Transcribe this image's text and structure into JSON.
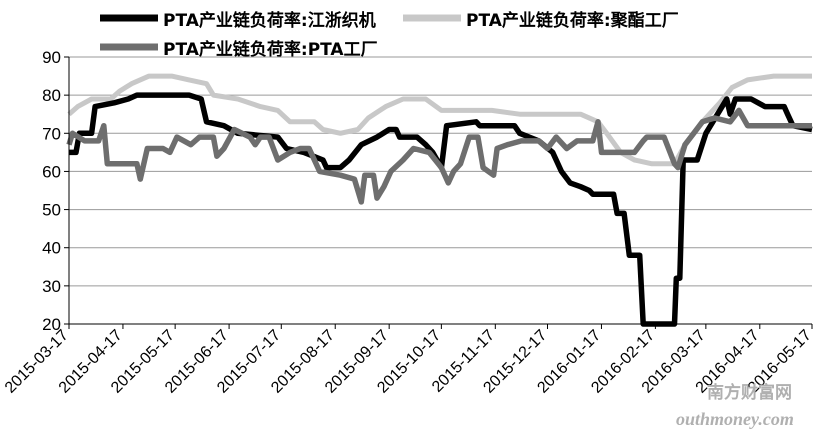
{
  "chart_data": {
    "type": "line",
    "ylim": [
      20,
      90
    ],
    "yticks": [
      20,
      30,
      40,
      50,
      60,
      70,
      80,
      90
    ],
    "xticks": [
      "2015-03-17",
      "2015-04-17",
      "2015-05-17",
      "2015-06-17",
      "2015-07-17",
      "2015-08-17",
      "2015-09-17",
      "2015-10-17",
      "2015-11-17",
      "2015-12-17",
      "2016-01-17",
      "2016-02-17",
      "2016-03-17",
      "2016-04-17",
      "2016-05-17"
    ],
    "x_range": [
      "2015-03-17",
      "2016-05-17"
    ],
    "grid": "horizontal",
    "legend_position": "top",
    "series": [
      {
        "name": "PTA产业链负荷率:江浙织机",
        "color": "#000000",
        "points": [
          [
            "2015-03-17",
            65
          ],
          [
            "2015-03-21",
            65
          ],
          [
            "2015-03-23",
            70
          ],
          [
            "2015-03-30",
            70
          ],
          [
            "2015-04-01",
            77
          ],
          [
            "2015-04-12",
            78
          ],
          [
            "2015-04-20",
            79
          ],
          [
            "2015-04-25",
            80
          ],
          [
            "2015-05-25",
            80
          ],
          [
            "2015-06-01",
            79
          ],
          [
            "2015-06-04",
            73
          ],
          [
            "2015-06-14",
            72
          ],
          [
            "2015-06-22",
            70
          ],
          [
            "2015-07-15",
            69
          ],
          [
            "2015-07-20",
            66
          ],
          [
            "2015-07-30",
            65
          ],
          [
            "2015-08-10",
            63
          ],
          [
            "2015-08-12",
            61
          ],
          [
            "2015-08-20",
            61
          ],
          [
            "2015-08-25",
            63
          ],
          [
            "2015-09-01",
            67
          ],
          [
            "2015-09-10",
            69
          ],
          [
            "2015-09-17",
            71
          ],
          [
            "2015-09-21",
            71
          ],
          [
            "2015-09-23",
            69
          ],
          [
            "2015-10-03",
            69
          ],
          [
            "2015-10-08",
            67
          ],
          [
            "2015-10-12",
            65
          ],
          [
            "2015-10-17",
            61
          ],
          [
            "2015-10-20",
            72
          ],
          [
            "2015-11-06",
            73
          ],
          [
            "2015-11-08",
            72
          ],
          [
            "2015-11-28",
            72
          ],
          [
            "2015-12-01",
            70
          ],
          [
            "2015-12-12",
            68
          ],
          [
            "2015-12-20",
            65
          ],
          [
            "2015-12-25",
            60
          ],
          [
            "2015-12-30",
            57
          ],
          [
            "2016-01-05",
            56
          ],
          [
            "2016-01-10",
            55
          ],
          [
            "2016-01-12",
            54
          ],
          [
            "2016-01-24",
            54
          ],
          [
            "2016-01-26",
            49
          ],
          [
            "2016-01-30",
            49
          ],
          [
            "2016-02-02",
            38
          ],
          [
            "2016-02-08",
            38
          ],
          [
            "2016-02-10",
            20
          ],
          [
            "2016-02-28",
            20
          ],
          [
            "2016-02-29",
            32
          ],
          [
            "2016-03-02",
            32
          ],
          [
            "2016-03-04",
            63
          ],
          [
            "2016-03-12",
            63
          ],
          [
            "2016-03-17",
            70
          ],
          [
            "2016-03-25",
            76
          ],
          [
            "2016-03-29",
            79
          ],
          [
            "2016-03-31",
            75
          ],
          [
            "2016-04-03",
            79
          ],
          [
            "2016-04-12",
            79
          ],
          [
            "2016-04-16",
            78
          ],
          [
            "2016-04-20",
            77
          ],
          [
            "2016-05-01",
            77
          ],
          [
            "2016-05-03",
            75
          ],
          [
            "2016-05-06",
            72
          ],
          [
            "2016-05-17",
            71
          ]
        ]
      },
      {
        "name": "PTA产业链负荷率:聚酯工厂",
        "color": "#c8c8c8",
        "points": [
          [
            "2015-03-17",
            75
          ],
          [
            "2015-03-22",
            77
          ],
          [
            "2015-03-30",
            79
          ],
          [
            "2015-04-10",
            79
          ],
          [
            "2015-04-15",
            81
          ],
          [
            "2015-04-22",
            83
          ],
          [
            "2015-05-02",
            85
          ],
          [
            "2015-05-15",
            85
          ],
          [
            "2015-05-25",
            84
          ],
          [
            "2015-06-04",
            83
          ],
          [
            "2015-06-08",
            80
          ],
          [
            "2015-06-22",
            79
          ],
          [
            "2015-07-05",
            77
          ],
          [
            "2015-07-15",
            76
          ],
          [
            "2015-07-22",
            73
          ],
          [
            "2015-08-05",
            73
          ],
          [
            "2015-08-10",
            71
          ],
          [
            "2015-08-20",
            70
          ],
          [
            "2015-08-30",
            71
          ],
          [
            "2015-09-05",
            74
          ],
          [
            "2015-09-15",
            77
          ],
          [
            "2015-09-25",
            79
          ],
          [
            "2015-10-08",
            79
          ],
          [
            "2015-10-17",
            76
          ],
          [
            "2015-11-15",
            76
          ],
          [
            "2015-12-01",
            75
          ],
          [
            "2015-12-20",
            75
          ],
          [
            "2016-01-05",
            75
          ],
          [
            "2016-01-15",
            73
          ],
          [
            "2016-01-20",
            70
          ],
          [
            "2016-01-28",
            65
          ],
          [
            "2016-02-05",
            63
          ],
          [
            "2016-02-15",
            62
          ],
          [
            "2016-02-28",
            62
          ],
          [
            "2016-03-05",
            67
          ],
          [
            "2016-03-15",
            73
          ],
          [
            "2016-03-25",
            78
          ],
          [
            "2016-04-01",
            82
          ],
          [
            "2016-04-10",
            84
          ],
          [
            "2016-04-25",
            85
          ],
          [
            "2016-05-17",
            85
          ]
        ]
      },
      {
        "name": "PTA产业链负荷率:PTA工厂",
        "color": "#6e6e6e",
        "points": [
          [
            "2015-03-17",
            67
          ],
          [
            "2015-03-19",
            70
          ],
          [
            "2015-03-26",
            68
          ],
          [
            "2015-04-03",
            68
          ],
          [
            "2015-04-06",
            72
          ],
          [
            "2015-04-08",
            62
          ],
          [
            "2015-04-25",
            62
          ],
          [
            "2015-04-27",
            58
          ],
          [
            "2015-05-01",
            66
          ],
          [
            "2015-05-10",
            66
          ],
          [
            "2015-05-14",
            65
          ],
          [
            "2015-05-18",
            69
          ],
          [
            "2015-05-26",
            67
          ],
          [
            "2015-05-31",
            69
          ],
          [
            "2015-06-08",
            69
          ],
          [
            "2015-06-10",
            64
          ],
          [
            "2015-06-14",
            66
          ],
          [
            "2015-06-20",
            71
          ],
          [
            "2015-06-29",
            69
          ],
          [
            "2015-07-02",
            67
          ],
          [
            "2015-07-05",
            69
          ],
          [
            "2015-07-10",
            69
          ],
          [
            "2015-07-15",
            63
          ],
          [
            "2015-07-22",
            65
          ],
          [
            "2015-07-28",
            66
          ],
          [
            "2015-08-02",
            66
          ],
          [
            "2015-08-08",
            60
          ],
          [
            "2015-08-20",
            59
          ],
          [
            "2015-08-28",
            58
          ],
          [
            "2015-09-01",
            52
          ],
          [
            "2015-09-03",
            59
          ],
          [
            "2015-09-08",
            59
          ],
          [
            "2015-09-10",
            53
          ],
          [
            "2015-09-14",
            56
          ],
          [
            "2015-09-18",
            60
          ],
          [
            "2015-09-25",
            63
          ],
          [
            "2015-10-01",
            66
          ],
          [
            "2015-10-10",
            65
          ],
          [
            "2015-10-17",
            61
          ],
          [
            "2015-10-21",
            57
          ],
          [
            "2015-10-24",
            60
          ],
          [
            "2015-10-28",
            62
          ],
          [
            "2015-11-02",
            69
          ],
          [
            "2015-11-07",
            69
          ],
          [
            "2015-11-10",
            61
          ],
          [
            "2015-11-16",
            59
          ],
          [
            "2015-11-18",
            66
          ],
          [
            "2015-11-24",
            67
          ],
          [
            "2015-12-02",
            68
          ],
          [
            "2015-12-12",
            68
          ],
          [
            "2015-12-17",
            66
          ],
          [
            "2015-12-22",
            69
          ],
          [
            "2015-12-28",
            66
          ],
          [
            "2016-01-03",
            68
          ],
          [
            "2016-01-12",
            68
          ],
          [
            "2016-01-15",
            73
          ],
          [
            "2016-01-17",
            65
          ],
          [
            "2016-02-05",
            65
          ],
          [
            "2016-02-10",
            68
          ],
          [
            "2016-02-12",
            69
          ],
          [
            "2016-02-22",
            69
          ],
          [
            "2016-02-28",
            62
          ],
          [
            "2016-03-01",
            61
          ],
          [
            "2016-03-05",
            67
          ],
          [
            "2016-03-10",
            70
          ],
          [
            "2016-03-15",
            73
          ],
          [
            "2016-03-22",
            74
          ],
          [
            "2016-03-31",
            73
          ],
          [
            "2016-04-05",
            76
          ],
          [
            "2016-04-10",
            72
          ],
          [
            "2016-05-17",
            72
          ]
        ]
      }
    ]
  },
  "watermark": {
    "brand_cn": "南方财富网",
    "brand_en": "outhmoney.com"
  }
}
